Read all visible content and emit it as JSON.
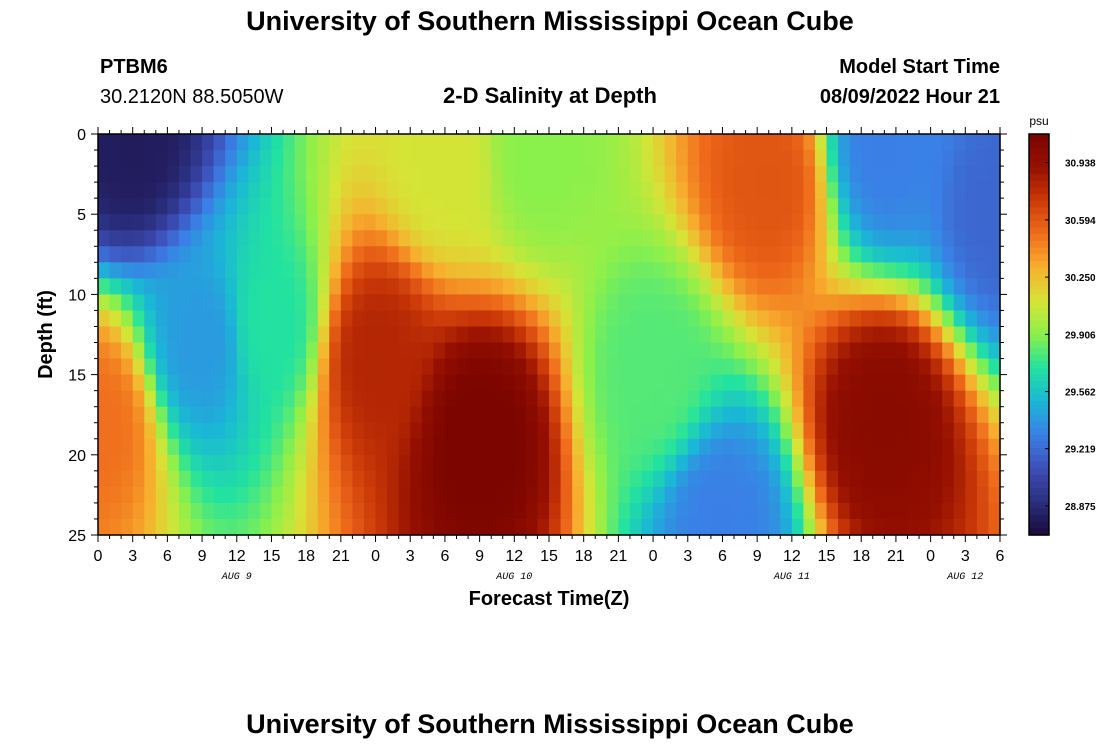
{
  "header": {
    "title": "University of Southern Mississippi Ocean Cube",
    "station_id": "PTBM6",
    "station_coords": "30.2120N  88.5050W",
    "subtitle": "2-D Salinity at Depth",
    "model_start_label": "Model Start Time",
    "model_start_value": "08/09/2022 Hour 21"
  },
  "footer": {
    "title": "University of Southern Mississippi Ocean Cube"
  },
  "chart_data": {
    "type": "heatmap",
    "title": "2-D Salinity at Depth",
    "xlabel": "Forecast Time(Z)",
    "ylabel": "Depth (ft)",
    "units": "psu",
    "x_tick_labels": [
      "0",
      "3",
      "6",
      "9",
      "12",
      "15",
      "18",
      "21",
      "0",
      "3",
      "6",
      "9",
      "12",
      "15",
      "18",
      "21",
      "0",
      "3",
      "6",
      "9",
      "12",
      "15",
      "18",
      "21",
      "0",
      "3",
      "6"
    ],
    "x_hours_since_aug9_00z": [
      0,
      78
    ],
    "y_ticks": [
      0,
      5,
      10,
      15,
      20,
      25
    ],
    "ylim": [
      0,
      25
    ],
    "y_inverted": true,
    "date_labels": [
      {
        "label": "AUG 9",
        "hour": 12
      },
      {
        "label": "AUG 10",
        "hour": 36
      },
      {
        "label": "AUG 11",
        "hour": 60
      },
      {
        "label": "AUG 12",
        "hour": 75
      }
    ],
    "colorbar": {
      "label": "psu",
      "ticks": [
        "30.938",
        "30.594",
        "30.250",
        "29.906",
        "29.562",
        "29.219",
        "28.875"
      ],
      "min": 28.7,
      "max": 31.11,
      "colors": [
        "#1a0a3a",
        "#2a2f7f",
        "#3e4fb8",
        "#3a80e6",
        "#1ab7d6",
        "#22e2a0",
        "#8cf04a",
        "#d6e436",
        "#f7b02e",
        "#f06d1c",
        "#cc3a08",
        "#961000",
        "#7a0400"
      ]
    },
    "features": [
      {
        "x_hour": 3,
        "depth": 0.5,
        "value": 28.8
      },
      {
        "x_hour": 0,
        "depth": 18,
        "value": 30.5
      },
      {
        "x_hour": 9,
        "depth": 13,
        "value": 29.4
      },
      {
        "x_hour": 15,
        "depth": 12,
        "value": 29.7
      },
      {
        "x_hour": 24,
        "depth": 14,
        "value": 30.8
      },
      {
        "x_hour": 33,
        "depth": 19,
        "value": 31.1
      },
      {
        "x_hour": 30,
        "depth": 2,
        "value": 30.1
      },
      {
        "x_hour": 38,
        "depth": 1,
        "value": 29.9
      },
      {
        "x_hour": 48,
        "depth": 15,
        "value": 29.8
      },
      {
        "x_hour": 54,
        "depth": 24,
        "value": 29.3
      },
      {
        "x_hour": 58,
        "depth": 3,
        "value": 30.6
      },
      {
        "x_hour": 68,
        "depth": 1,
        "value": 29.3
      },
      {
        "x_hour": 68,
        "depth": 18,
        "value": 31.0
      },
      {
        "x_hour": 78,
        "depth": 5,
        "value": 29.2
      }
    ]
  }
}
